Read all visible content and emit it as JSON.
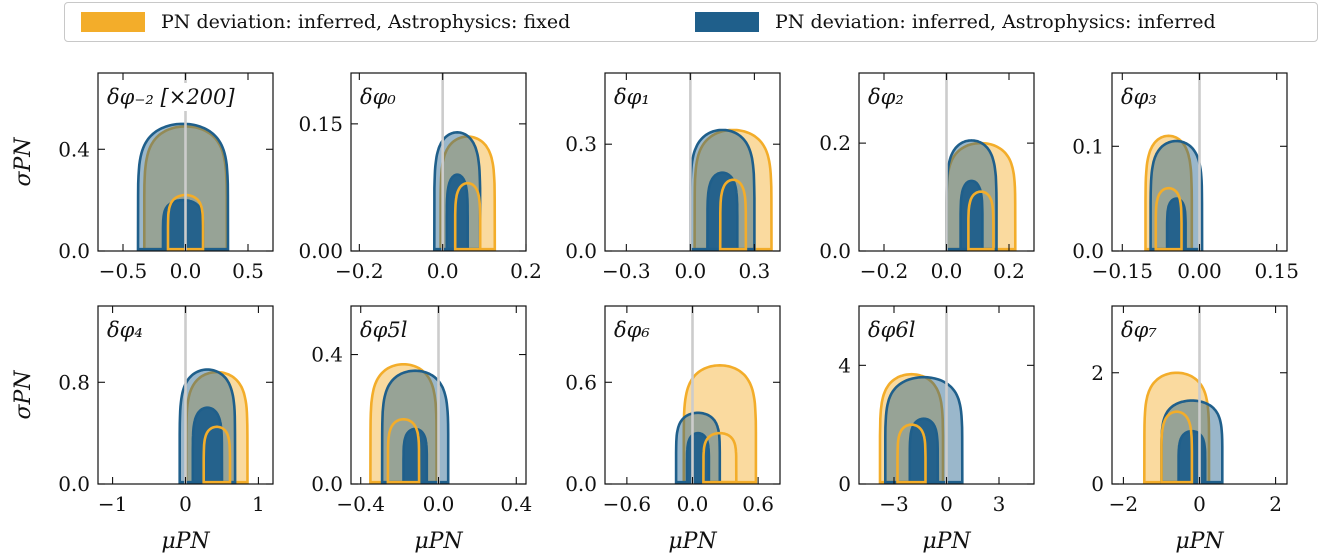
{
  "legend": {
    "fixed_label": "PN deviation: inferred, Astrophysics: fixed",
    "inferred_label": "PN deviation: inferred, Astrophysics: inferred"
  },
  "colors": {
    "fixed": "#f3ad2a",
    "inferred": "#1f5f8b",
    "zero_line": "#cccccc"
  },
  "chart_data": [
    {
      "type": "contour",
      "title": "δφ₋₂ [×200]",
      "xlabel": "",
      "ylabel": "σPN",
      "xlim": [
        -0.7,
        0.7
      ],
      "ylim": [
        0,
        0.7
      ],
      "xticks": [
        -0.5,
        0,
        0.5
      ],
      "xticklabels": [
        "−0.5",
        "0.0",
        "0.5"
      ],
      "yticks": [
        0,
        0.4
      ],
      "yticklabels": [
        "0.0",
        "0.4"
      ],
      "fixed": {
        "center": 0.0,
        "half90": 0.33,
        "peak90": 0.49,
        "half50": 0.14,
        "peak50": 0.22
      },
      "inferred": {
        "center": -0.02,
        "half90": 0.36,
        "peak90": 0.5,
        "half50": 0.16,
        "peak50": 0.2
      }
    },
    {
      "type": "contour",
      "title": "δφ₀",
      "xlabel": "",
      "ylabel": "",
      "xlim": [
        -0.22,
        0.2
      ],
      "ylim": [
        0,
        0.21
      ],
      "xticks": [
        -0.2,
        0,
        0.2
      ],
      "xticklabels": [
        "−0.2",
        "0.0",
        "0.2"
      ],
      "yticks": [
        0,
        0.15
      ],
      "yticklabels": [
        "0.00",
        "0.15"
      ],
      "fixed": {
        "center": 0.06,
        "half90": 0.065,
        "peak90": 0.135,
        "half50": 0.03,
        "peak50": 0.08
      },
      "inferred": {
        "center": 0.035,
        "half90": 0.055,
        "peak90": 0.14,
        "half50": 0.025,
        "peak50": 0.09
      }
    },
    {
      "type": "contour",
      "title": "δφ₁",
      "xlabel": "",
      "ylabel": "",
      "xlim": [
        -0.4,
        0.42
      ],
      "ylim": [
        0,
        0.5
      ],
      "xticks": [
        -0.3,
        0,
        0.3
      ],
      "xticklabels": [
        "−0.3",
        "0.0",
        "0.3"
      ],
      "yticks": [
        0,
        0.3
      ],
      "yticklabels": [
        "0.0",
        "0.3"
      ],
      "fixed": {
        "center": 0.2,
        "half90": 0.18,
        "peak90": 0.34,
        "half50": 0.06,
        "peak50": 0.2
      },
      "inferred": {
        "center": 0.15,
        "half90": 0.15,
        "peak90": 0.34,
        "half50": 0.07,
        "peak50": 0.22
      }
    },
    {
      "type": "contour",
      "title": "δφ₂",
      "xlabel": "",
      "ylabel": "",
      "xlim": [
        -0.28,
        0.28
      ],
      "ylim": [
        0,
        0.33
      ],
      "xticks": [
        -0.2,
        0,
        0.2
      ],
      "xticklabels": [
        "−0.2",
        "0.0",
        "0.2"
      ],
      "yticks": [
        0,
        0.2
      ],
      "yticklabels": [
        "0.0",
        "0.2"
      ],
      "fixed": {
        "center": 0.11,
        "half90": 0.11,
        "peak90": 0.2,
        "half50": 0.04,
        "peak50": 0.11
      },
      "inferred": {
        "center": 0.08,
        "half90": 0.08,
        "peak90": 0.205,
        "half50": 0.035,
        "peak50": 0.13
      }
    },
    {
      "type": "contour",
      "title": "δφ₃",
      "xlabel": "",
      "ylabel": "",
      "xlim": [
        -0.17,
        0.17
      ],
      "ylim": [
        0,
        0.17
      ],
      "xticks": [
        -0.15,
        0,
        0.15
      ],
      "xticklabels": [
        "−0.15",
        "0.00",
        "0.15"
      ],
      "yticks": [
        0,
        0.1
      ],
      "yticklabels": [
        "0.0",
        "0.1"
      ],
      "fixed": {
        "center": -0.06,
        "half90": 0.045,
        "peak90": 0.11,
        "half50": 0.025,
        "peak50": 0.06
      },
      "inferred": {
        "center": -0.045,
        "half90": 0.05,
        "peak90": 0.105,
        "half50": 0.018,
        "peak50": 0.05
      }
    },
    {
      "type": "contour",
      "title": "δφ₄",
      "xlabel": "μPN",
      "ylabel": "σPN",
      "xlim": [
        -1.2,
        1.2
      ],
      "ylim": [
        0,
        1.4
      ],
      "xticks": [
        -1,
        0,
        1
      ],
      "xticklabels": [
        "−1",
        "0",
        "1"
      ],
      "yticks": [
        0,
        0.8
      ],
      "yticklabels": [
        "0.0",
        "0.8"
      ],
      "fixed": {
        "center": 0.43,
        "half90": 0.42,
        "peak90": 0.88,
        "half50": 0.18,
        "peak50": 0.45
      },
      "inferred": {
        "center": 0.3,
        "half90": 0.38,
        "peak90": 0.9,
        "half50": 0.2,
        "peak50": 0.6
      }
    },
    {
      "type": "contour",
      "title": "δφ5l",
      "xlabel": "μPN",
      "ylabel": "",
      "xlim": [
        -0.45,
        0.45
      ],
      "ylim": [
        0,
        0.55
      ],
      "xticks": [
        -0.4,
        0,
        0.4
      ],
      "xticklabels": [
        "−0.4",
        "0.0",
        "0.4"
      ],
      "yticks": [
        0,
        0.4
      ],
      "yticklabels": [
        "0.0",
        "0.4"
      ],
      "fixed": {
        "center": -0.18,
        "half90": 0.17,
        "peak90": 0.37,
        "half50": 0.08,
        "peak50": 0.2
      },
      "inferred": {
        "center": -0.12,
        "half90": 0.17,
        "peak90": 0.35,
        "half50": 0.06,
        "peak50": 0.17
      }
    },
    {
      "type": "contour",
      "title": "δφ₆",
      "xlabel": "μPN",
      "ylabel": "",
      "xlim": [
        -0.8,
        0.8
      ],
      "ylim": [
        0,
        1.05
      ],
      "xticks": [
        -0.6,
        0,
        0.6
      ],
      "xticklabels": [
        "−0.6",
        "0.0",
        "0.6"
      ],
      "yticks": [
        0,
        0.6
      ],
      "yticklabels": [
        "0.0",
        "0.6"
      ],
      "fixed": {
        "center": 0.25,
        "half90": 0.33,
        "peak90": 0.7,
        "half50": 0.15,
        "peak50": 0.3
      },
      "inferred": {
        "center": 0.05,
        "half90": 0.2,
        "peak90": 0.42,
        "half50": 0.1,
        "peak50": 0.3
      }
    },
    {
      "type": "contour",
      "title": "δφ6l",
      "xlabel": "μPN",
      "ylabel": "",
      "xlim": [
        -5,
        5
      ],
      "ylim": [
        0,
        6
      ],
      "xticks": [
        -3,
        0,
        3
      ],
      "xticklabels": [
        "−3",
        "0",
        "3"
      ],
      "yticks": [
        0,
        4
      ],
      "yticklabels": [
        "0",
        "4"
      ],
      "fixed": {
        "center": -2.0,
        "half90": 1.8,
        "peak90": 3.7,
        "half50": 0.8,
        "peak50": 2.0
      },
      "inferred": {
        "center": -1.3,
        "half90": 2.2,
        "peak90": 3.6,
        "half50": 0.8,
        "peak50": 2.2
      }
    },
    {
      "type": "contour",
      "title": "δφ₇",
      "xlabel": "μPN",
      "ylabel": "",
      "xlim": [
        -2.3,
        2.3
      ],
      "ylim": [
        0,
        3.2
      ],
      "xticks": [
        -2,
        0,
        2
      ],
      "xticklabels": [
        "−2",
        "0",
        "2"
      ],
      "yticks": [
        0,
        2
      ],
      "yticklabels": [
        "0",
        "2"
      ],
      "fixed": {
        "center": -0.6,
        "half90": 0.85,
        "peak90": 2.0,
        "half50": 0.4,
        "peak50": 1.3
      },
      "inferred": {
        "center": -0.2,
        "half90": 0.8,
        "peak90": 1.5,
        "half50": 0.35,
        "peak50": 0.95
      }
    }
  ]
}
